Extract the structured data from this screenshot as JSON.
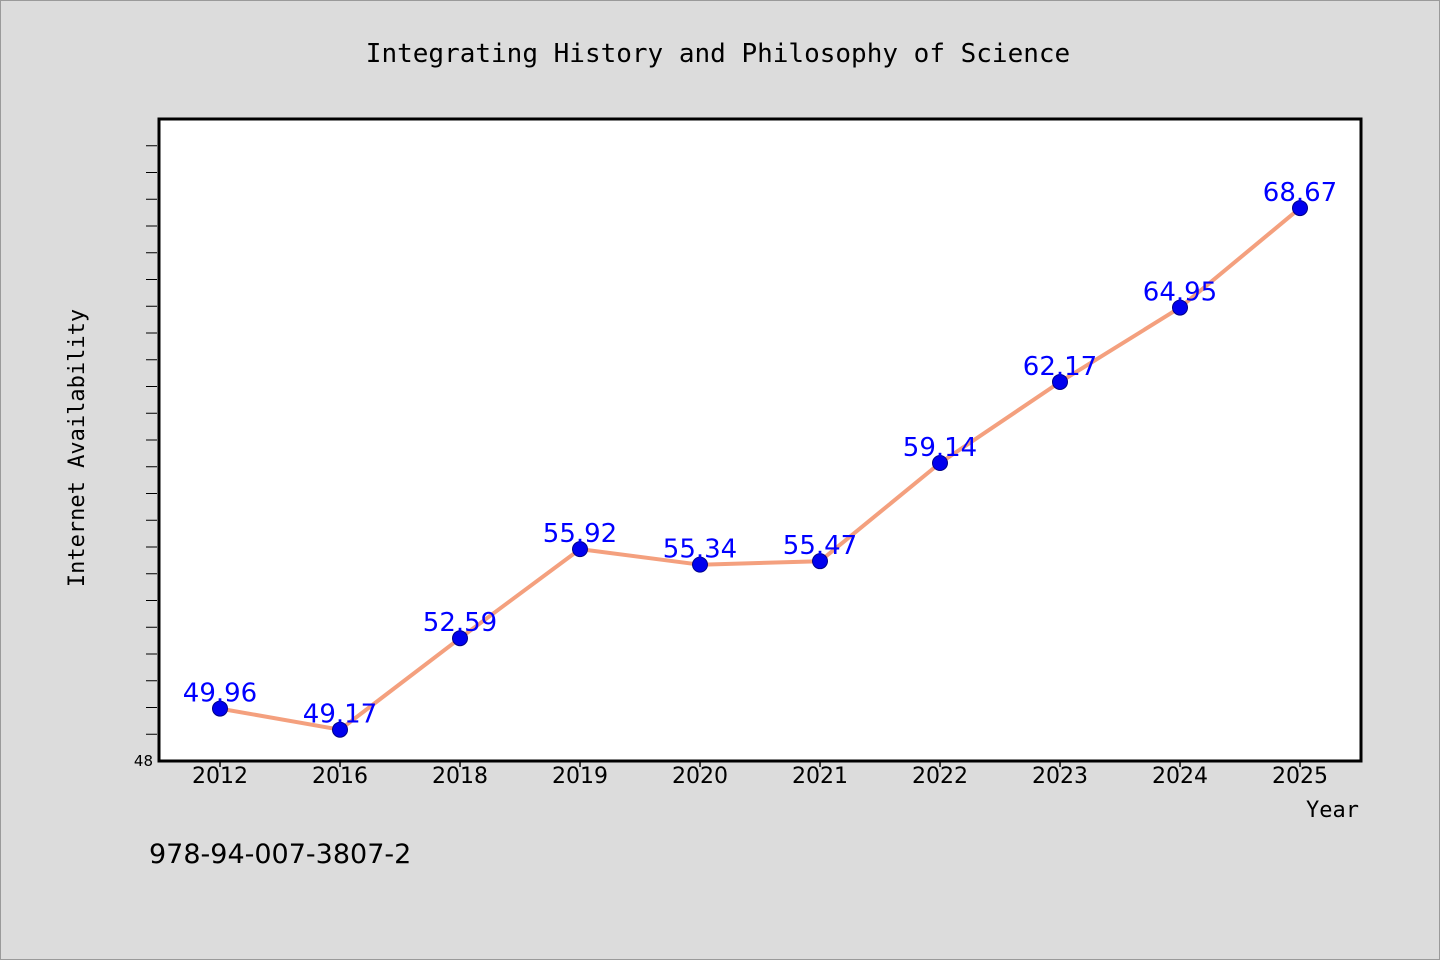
{
  "chart_data": {
    "type": "line",
    "title": "Integrating History and Philosophy of Science",
    "xlabel": "Year",
    "ylabel": "Internet Availability",
    "categories": [
      "2012",
      "2016",
      "2018",
      "2019",
      "2020",
      "2021",
      "2022",
      "2023",
      "2024",
      "2025"
    ],
    "values": [
      49.96,
      49.17,
      52.59,
      55.92,
      55.34,
      55.47,
      59.14,
      62.17,
      64.95,
      68.67
    ],
    "data_labels": [
      "49.96",
      "49.17",
      "52.59",
      "55.92",
      "55.34",
      "55.47",
      "59.14",
      "62.17",
      "64.95",
      "68.67"
    ],
    "ylim": [
      48,
      72
    ],
    "y_tick_labels": [
      "48"
    ],
    "line_color": "#f4a07e",
    "marker_color": "#0000ee",
    "label_color": "#0000ff",
    "grid": false,
    "legend": "none"
  },
  "footer": {
    "isbn": "978-94-007-3807-2"
  }
}
